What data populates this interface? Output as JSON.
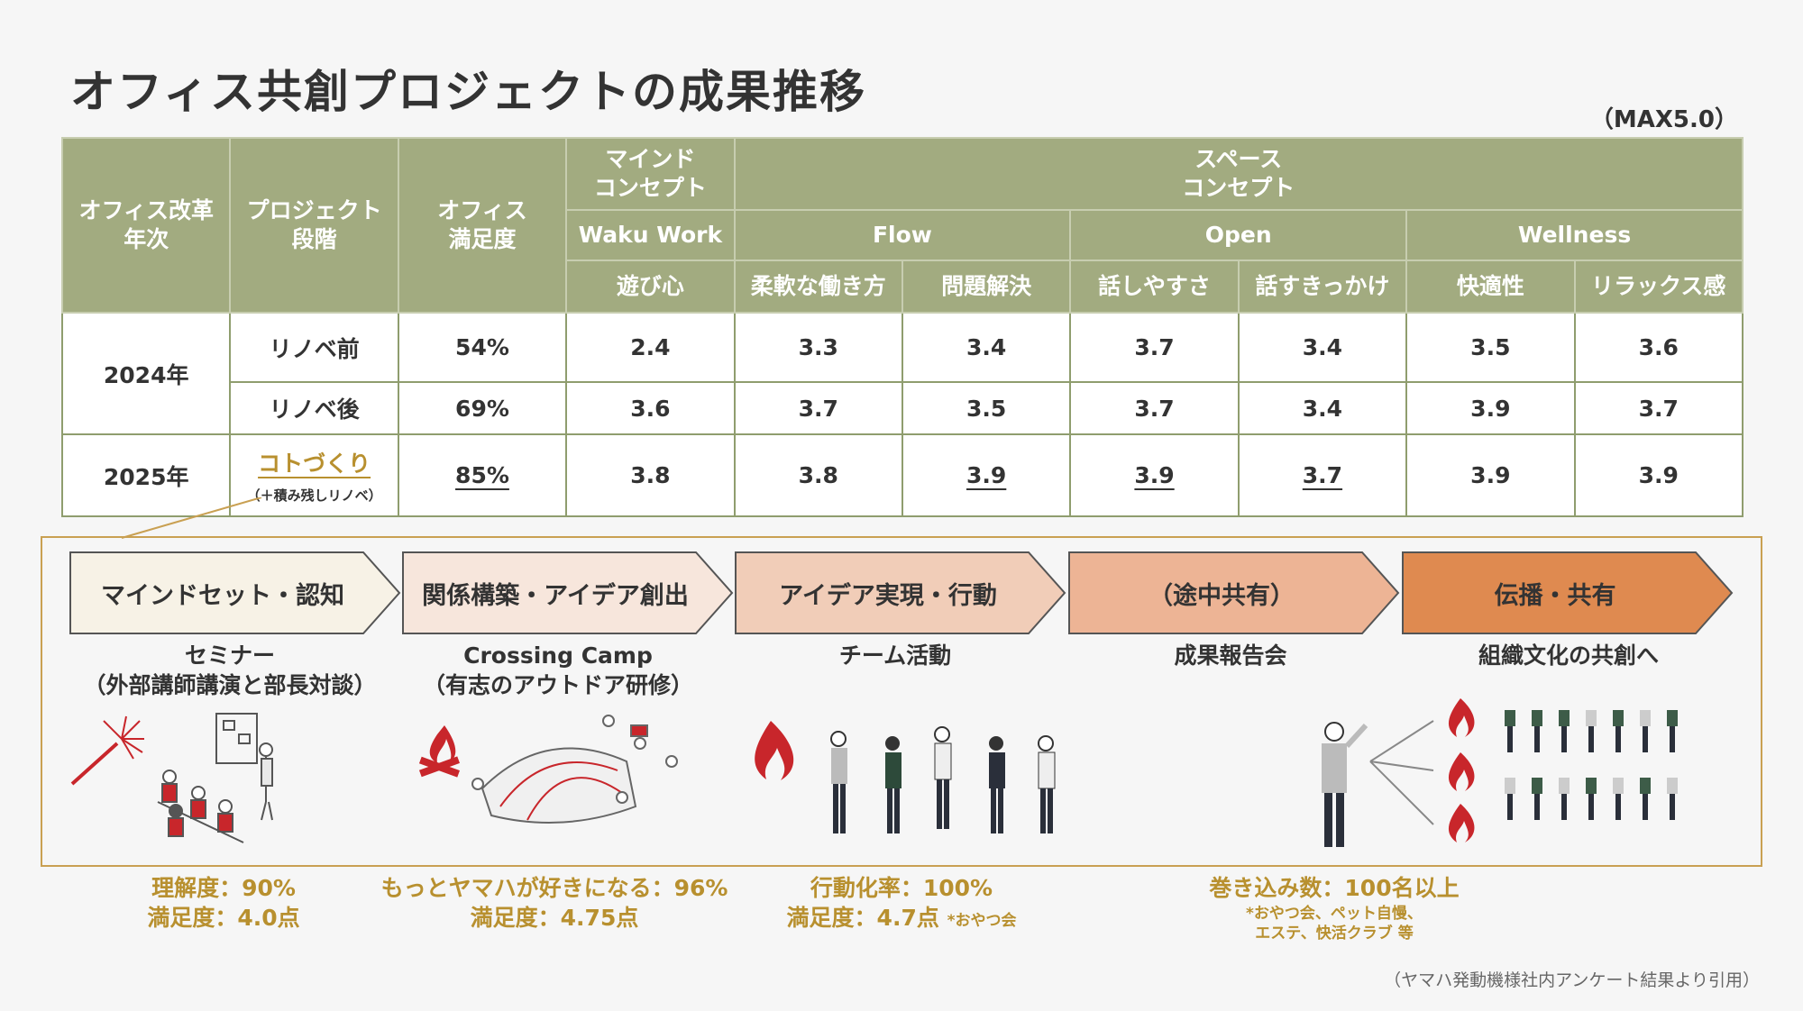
{
  "title": "オフィス共創プロジェクトの成果推移",
  "max_note": "（MAX5.0）",
  "table": {
    "headers": {
      "year": "オフィス改革\n年次",
      "phase": "プロジェクト\n段階",
      "satisfaction": "オフィス\n満足度",
      "mind": "マインド\nコンセプト",
      "space": "スペース\nコンセプト",
      "waku": "Waku Work",
      "flow": "Flow",
      "open": "Open",
      "wellness": "Wellness",
      "asobi": "遊び心",
      "flex": "柔軟な働き方",
      "mondai": "問題解決",
      "hanashi": "話しやすさ",
      "kikkake": "話すきっかけ",
      "kaiteki": "快適性",
      "relax": "リラックス感"
    },
    "rows": [
      {
        "year": "2024年",
        "phase": "リノベ前",
        "satisfaction": "54%",
        "v": [
          "2.4",
          "3.3",
          "3.4",
          "3.7",
          "3.4",
          "3.5",
          "3.6"
        ]
      },
      {
        "year": "",
        "phase": "リノベ後",
        "satisfaction": "69%",
        "v": [
          "3.6",
          "3.7",
          "3.5",
          "3.7",
          "3.4",
          "3.9",
          "3.7"
        ]
      },
      {
        "year": "2025年",
        "phase": "コトづくり",
        "phase_sub": "（＋積み残しリノベ）",
        "satisfaction": "85%",
        "v": [
          "3.8",
          "3.8",
          "3.9",
          "3.9",
          "3.7",
          "3.9",
          "3.9"
        ]
      }
    ]
  },
  "steps": [
    {
      "label": "マインドセット・認知",
      "color": "#f7f2e6",
      "activity": "セミナー\n（外部講師講演と部長対談）"
    },
    {
      "label": "関係構築・アイデア創出",
      "color": "#f7e6dc",
      "activity": "Crossing Camp\n（有志のアウトドア研修）"
    },
    {
      "label": "アイデア実現・行動",
      "color": "#f1cdb8",
      "activity": "チーム活動"
    },
    {
      "label": "（途中共有）",
      "color": "#edb495",
      "activity": "成果報告会"
    },
    {
      "label": "伝播・共有",
      "color": "#df8a50",
      "activity": "組織文化の共創へ"
    }
  ],
  "metrics": {
    "m1": "理解度：90%\n満足度：4.0点",
    "m2": "もっとヤマハが好きになる：96%\n満足度：4.75点",
    "m3_line1": "行動化率：100%",
    "m3_line2": "満足度：4.7点",
    "m3_note": "*おやつ会",
    "m4_line1": "巻き込み数：100名以上",
    "m4_note": "*おやつ会、ペット自慢、\nエステ、快活クラブ 等"
  },
  "footnote": "（ヤマハ発動機様社内アンケート結果より引用）",
  "colors": {
    "header_bg": "#a2ab80",
    "accent_gold": "#b8902f",
    "green_value": "#7f9162",
    "flame": "#c8262b"
  }
}
